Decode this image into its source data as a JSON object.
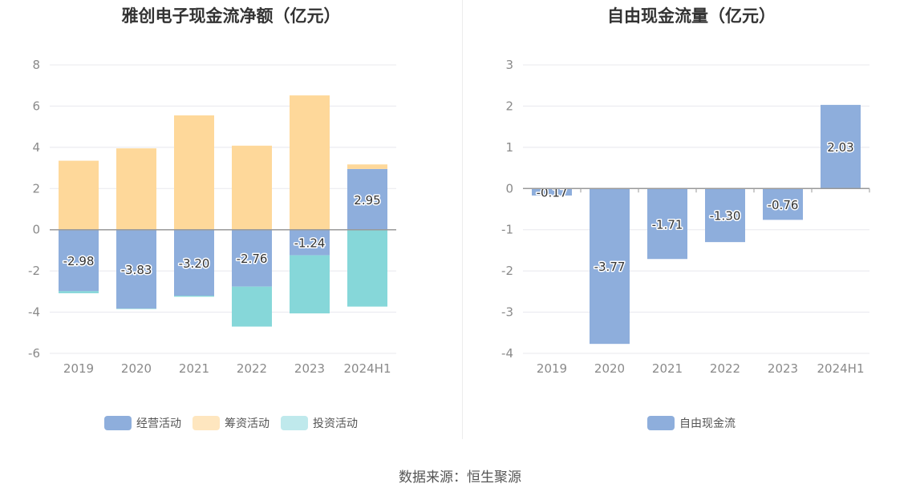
{
  "colors": {
    "operating": "#8eaedc",
    "financing": "#fed89a",
    "investing": "#86d7d9",
    "investing_legend": "#bfe9ec",
    "financing_legend": "#fee6bf",
    "axis": "#999999",
    "grid": "#e8e8ee"
  },
  "left_panel": {
    "title": "雅创电子现金流净额（亿元）",
    "legend": [
      {
        "label": "经营活动",
        "icon": "bar-swatch"
      },
      {
        "label": "筹资活动",
        "icon": "bar-swatch"
      },
      {
        "label": "投资活动",
        "icon": "bar-swatch"
      }
    ]
  },
  "right_panel": {
    "title": "自由现金流量（亿元）",
    "legend": [
      {
        "label": "自由现金流",
        "icon": "bar-swatch"
      }
    ]
  },
  "footer": {
    "source": "数据来源：恒生聚源"
  },
  "chart_data": [
    {
      "type": "bar",
      "stacked": true,
      "title": "雅创电子现金流净额（亿元）",
      "categories": [
        "2019",
        "2020",
        "2021",
        "2022",
        "2023",
        "2024H1"
      ],
      "ylim": [
        -6,
        8
      ],
      "yticks": [
        8,
        6,
        4,
        2,
        0,
        -2,
        -4,
        -6
      ],
      "grid": true,
      "legend_position": "bottom",
      "series": [
        {
          "name": "经营活动",
          "values": [
            -2.98,
            -3.83,
            -3.2,
            -2.76,
            -1.24,
            2.95
          ],
          "labels": [
            "-2.98",
            "-3.83",
            "-3.20",
            "-2.76",
            "-1.24",
            "2.95"
          ]
        },
        {
          "name": "筹资活动",
          "values": [
            3.35,
            3.95,
            5.55,
            4.08,
            6.52,
            0.22
          ]
        },
        {
          "name": "投资活动",
          "values": [
            -0.1,
            -0.02,
            -0.05,
            -1.94,
            -2.82,
            -3.73
          ]
        }
      ]
    },
    {
      "type": "bar",
      "title": "自由现金流量（亿元）",
      "categories": [
        "2019",
        "2020",
        "2021",
        "2022",
        "2023",
        "2024H1"
      ],
      "ylim": [
        -4,
        3
      ],
      "yticks": [
        3,
        2,
        1,
        0,
        -1,
        -2,
        -3,
        -4
      ],
      "grid": true,
      "legend_position": "bottom",
      "series": [
        {
          "name": "自由现金流",
          "values": [
            -0.17,
            -3.77,
            -1.71,
            -1.3,
            -0.76,
            2.03
          ],
          "labels": [
            "-0.17",
            "-3.77",
            "-1.71",
            "-1.30",
            "-0.76",
            "2.03"
          ]
        }
      ]
    }
  ]
}
